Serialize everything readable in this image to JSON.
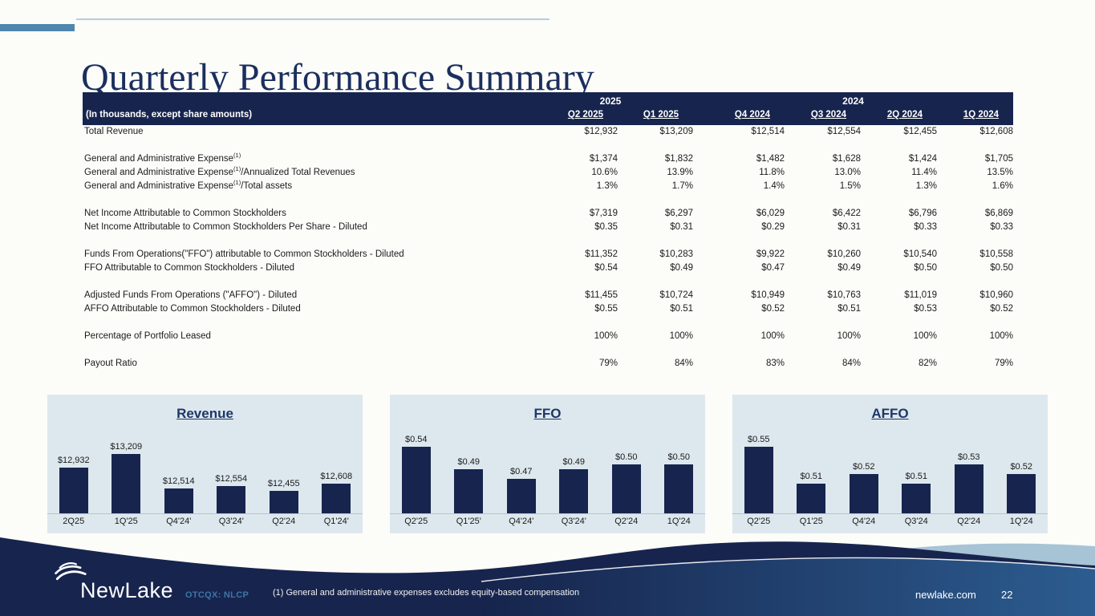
{
  "slide": {
    "title": "Quarterly Performance Summary",
    "page_number": "22",
    "website": "newlake.com",
    "ticker": "OTCQX: NLCP",
    "brand": "NewLake",
    "footnote": "(1) General and administrative expenses excludes equity-based compensation"
  },
  "colors": {
    "navy": "#17254e",
    "title_navy": "#1b2f5e",
    "steel_accent": "#4e86ae",
    "panel_bg": "#dde8ee",
    "light_wave": "#a7c3d6",
    "footer_gradient_right": "#2c5c90",
    "ticker_blue": "#3f74a6"
  },
  "table": {
    "caption": "(In thousands, except share amounts)",
    "year_groups": [
      {
        "label": "2025",
        "span": 2
      },
      {
        "label": "2024",
        "span": 4
      }
    ],
    "columns": [
      "Q2 2025",
      "Q1 2025",
      "Q4 2024",
      "Q3 2024",
      "2Q 2024",
      "1Q 2024"
    ],
    "rows": [
      {
        "label": "Total Revenue",
        "values": [
          "$12,932",
          "$13,209",
          "$12,514",
          "$12,554",
          "$12,455",
          "$12,608"
        ]
      },
      {
        "spacer": true
      },
      {
        "label": "General and Administrative Expense",
        "sup": "(1)",
        "suffix": "",
        "values": [
          "$1,374",
          "$1,832",
          "$1,482",
          "$1,628",
          "$1,424",
          "$1,705"
        ]
      },
      {
        "label": "General and Administrative Expense",
        "sup": "(1)",
        "suffix": "/Annualized Total Revenues",
        "values": [
          "10.6%",
          "13.9%",
          "11.8%",
          "13.0%",
          "11.4%",
          "13.5%"
        ]
      },
      {
        "label": "General and Administrative Expense",
        "sup": "(1)",
        "suffix": "/Total assets",
        "values": [
          "1.3%",
          "1.7%",
          "1.4%",
          "1.5%",
          "1.3%",
          "1.6%"
        ]
      },
      {
        "spacer": true
      },
      {
        "label": "Net Income Attributable to Common Stockholders",
        "values": [
          "$7,319",
          "$6,297",
          "$6,029",
          "$6,422",
          "$6,796",
          "$6,869"
        ]
      },
      {
        "label": "Net Income Attributable to Common Stockholders Per Share - Diluted",
        "values": [
          "$0.35",
          "$0.31",
          "$0.29",
          "$0.31",
          "$0.33",
          "$0.33"
        ]
      },
      {
        "spacer": true
      },
      {
        "label": "Funds From Operations(\"FFO\") attributable to Common Stockholders - Diluted",
        "values": [
          "$11,352",
          "$10,283",
          "$9,922",
          "$10,260",
          "$10,540",
          "$10,558"
        ]
      },
      {
        "label": "FFO Attributable to Common Stockholders - Diluted",
        "values": [
          "$0.54",
          "$0.49",
          "$0.47",
          "$0.49",
          "$0.50",
          "$0.50"
        ]
      },
      {
        "spacer": true
      },
      {
        "label": "Adjusted Funds From Operations (\"AFFO\") - Diluted",
        "values": [
          "$11,455",
          "$10,724",
          "$10,949",
          "$10,763",
          "$11,019",
          "$10,960"
        ]
      },
      {
        "label": "AFFO Attributable to Common Stockholders - Diluted",
        "values": [
          "$0.55",
          "$0.51",
          "$0.52",
          "$0.51",
          "$0.53",
          "$0.52"
        ]
      },
      {
        "spacer": true
      },
      {
        "label": "Percentage of Portfolio Leased",
        "values": [
          "100%",
          "100%",
          "100%",
          "100%",
          "100%",
          "100%"
        ]
      },
      {
        "spacer": true
      },
      {
        "label": "Payout Ratio",
        "values": [
          "79%",
          "84%",
          "83%",
          "84%",
          "82%",
          "79%"
        ]
      }
    ]
  },
  "chart_data": [
    {
      "type": "bar",
      "title": "Revenue",
      "categories": [
        "2Q25",
        "1Q'25",
        "Q4'24'",
        "Q3'24'",
        "Q2'24",
        "Q1'24'"
      ],
      "values": [
        12932,
        13209,
        12514,
        12554,
        12455,
        12608
      ],
      "labels": [
        "$12,932",
        "$13,209",
        "$12,514",
        "$12,554",
        "$12,455",
        "$12,608"
      ],
      "xlabel": "",
      "ylabel": "",
      "ylim": [
        12000,
        13600
      ],
      "grid": false,
      "legend": "none"
    },
    {
      "type": "bar",
      "title": "FFO",
      "categories": [
        "Q2'25",
        "Q1'25'",
        "Q4'24'",
        "Q3'24'",
        "Q2'24",
        "1Q'24"
      ],
      "values": [
        0.54,
        0.49,
        0.47,
        0.49,
        0.5,
        0.5
      ],
      "labels": [
        "$0.54",
        "$0.49",
        "$0.47",
        "$0.49",
        "$0.50",
        "$0.50"
      ],
      "xlabel": "",
      "ylabel": "",
      "ylim": [
        0.4,
        0.56
      ],
      "grid": false,
      "legend": "none"
    },
    {
      "type": "bar",
      "title": "AFFO",
      "categories": [
        "Q2'25",
        "Q1'25",
        "Q4'24",
        "Q3'24",
        "Q2'24",
        "1Q'24"
      ],
      "values": [
        0.55,
        0.51,
        0.52,
        0.51,
        0.53,
        0.52
      ],
      "labels": [
        "$0.55",
        "$0.51",
        "$0.52",
        "$0.51",
        "$0.53",
        "$0.52"
      ],
      "xlabel": "",
      "ylabel": "",
      "ylim": [
        0.48,
        0.56
      ],
      "grid": false,
      "legend": "none"
    }
  ]
}
